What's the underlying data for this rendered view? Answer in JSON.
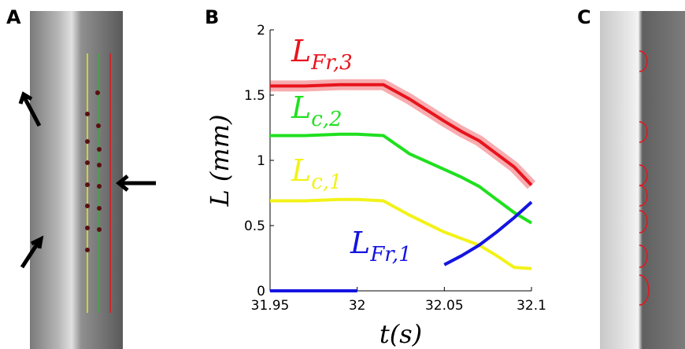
{
  "panel_labels": [
    "A",
    "B",
    "C"
  ],
  "chart_data": {
    "type": "line",
    "xlabel": "t(s)",
    "ylabel": "L (mm)",
    "x": [
      31.95,
      31.97,
      31.99,
      32,
      32.015,
      32.03,
      32.05,
      32.06,
      32.07,
      32.08,
      32.09,
      32.1
    ],
    "series": [
      {
        "name": "LFr,3",
        "color": "#e8141c",
        "values": [
          1.57,
          1.57,
          1.58,
          1.58,
          1.58,
          1.47,
          1.3,
          1.22,
          1.15,
          1.05,
          0.95,
          0.81
        ]
      },
      {
        "name": "Lc,2",
        "color": "#1fe01f",
        "values": [
          1.19,
          1.19,
          1.2,
          1.2,
          1.19,
          1.05,
          0.93,
          0.87,
          0.8,
          0.7,
          0.6,
          0.52
        ]
      },
      {
        "name": "Lc,1",
        "color": "#f2f21a",
        "values": [
          0.69,
          0.69,
          0.7,
          0.7,
          0.69,
          0.58,
          0.45,
          0.4,
          0.35,
          0.27,
          0.18,
          0.17
        ]
      },
      {
        "name": "LFr,1",
        "color": "#1414e0",
        "values": [
          0,
          0,
          0,
          0,
          null,
          null,
          0.2,
          0.27,
          0.35,
          0.45,
          0.56,
          0.68
        ]
      }
    ],
    "xlim": [
      31.95,
      32.1
    ],
    "xticks": [
      31.95,
      32,
      32.05,
      32.1
    ],
    "ylim": [
      0,
      2
    ],
    "yticks": [
      0,
      0.5,
      1,
      1.5,
      2
    ]
  }
}
